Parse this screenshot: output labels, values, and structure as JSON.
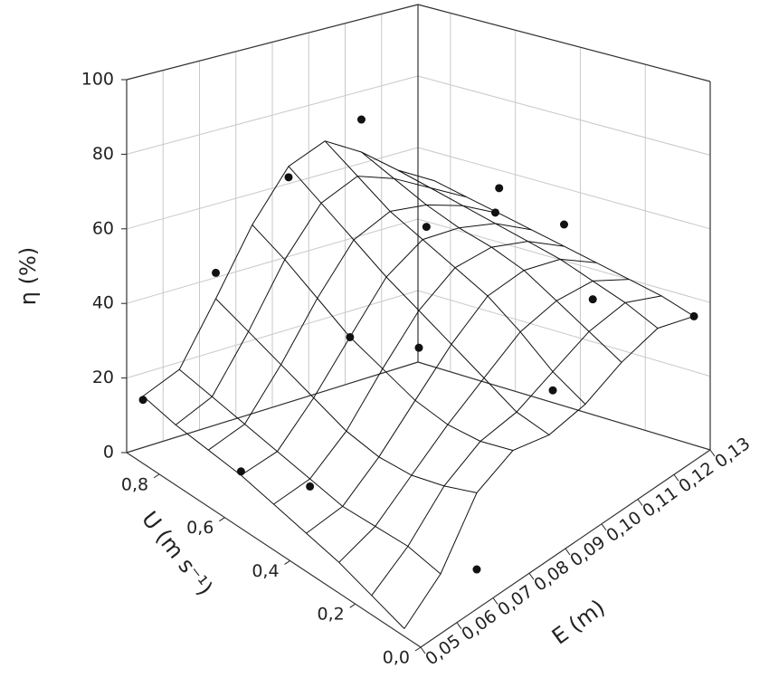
{
  "chart_data": {
    "type": "surface3d",
    "xlabel": "E (m)",
    "ylabel": "U (m s⁻¹)",
    "zlabel": "η (%)",
    "xlim": [
      0.05,
      0.13
    ],
    "ylim": [
      0,
      0.9
    ],
    "zlim": [
      0,
      100
    ],
    "xticks": [
      {
        "value": 0.05,
        "label": "0,05"
      },
      {
        "value": 0.06,
        "label": "0,06"
      },
      {
        "value": 0.07,
        "label": "0,07"
      },
      {
        "value": 0.08,
        "label": "0,08"
      },
      {
        "value": 0.09,
        "label": "0,09"
      },
      {
        "value": 0.1,
        "label": "0,10"
      },
      {
        "value": 0.11,
        "label": "0,11"
      },
      {
        "value": 0.12,
        "label": "0,12"
      },
      {
        "value": 0.13,
        "label": "0,13"
      }
    ],
    "yticks": [
      {
        "value": 0,
        "label": "0,0"
      },
      {
        "value": 0.2,
        "label": "0,2"
      },
      {
        "value": 0.4,
        "label": "0,4"
      },
      {
        "value": 0.6,
        "label": "0,6"
      },
      {
        "value": 0.8,
        "label": "0,8"
      }
    ],
    "zticks": [
      0,
      20,
      40,
      60,
      80,
      100
    ],
    "grid": true,
    "surface": {
      "x": [
        0.05,
        0.06,
        0.07,
        0.08,
        0.09,
        0.1,
        0.11,
        0.12,
        0.13
      ],
      "y": [
        0.05,
        0.15,
        0.25,
        0.35,
        0.45,
        0.55,
        0.65,
        0.75,
        0.85
      ],
      "z": [
        [
          2,
          10,
          25,
          30,
          28,
          30,
          35,
          38,
          35
        ],
        [
          5,
          12,
          22,
          28,
          30,
          35,
          40,
          42,
          38
        ],
        [
          8,
          12,
          20,
          28,
          35,
          42,
          45,
          45,
          40
        ],
        [
          10,
          12,
          20,
          30,
          40,
          48,
          50,
          48,
          42
        ],
        [
          12,
          14,
          22,
          34,
          45,
          52,
          53,
          50,
          44
        ],
        [
          14,
          16,
          26,
          38,
          50,
          56,
          55,
          52,
          46
        ],
        [
          15,
          18,
          30,
          44,
          56,
          60,
          58,
          54,
          48
        ],
        [
          16,
          20,
          34,
          50,
          62,
          66,
          62,
          56,
          50
        ],
        [
          18,
          22,
          38,
          55,
          68,
          72,
          66,
          58,
          52
        ]
      ],
      "color": "#111111"
    },
    "points": {
      "color": "#111111",
      "x": [
        0.05,
        0.05,
        0.06,
        0.07,
        0.09,
        0.11,
        0.08,
        0.09,
        0.11,
        0.1,
        0.12,
        0.13,
        0.12,
        0.13,
        0.13,
        0.07
      ],
      "y": [
        0.85,
        0.55,
        0.45,
        0.85,
        0.85,
        0.85,
        0.55,
        0.45,
        0.65,
        0.15,
        0.55,
        0.65,
        0.25,
        0.45,
        0.05,
        0.05
      ],
      "z": [
        17,
        15,
        12,
        45,
        65,
        75,
        38,
        35,
        52,
        30,
        55,
        55,
        40,
        50,
        35,
        5
      ]
    }
  }
}
